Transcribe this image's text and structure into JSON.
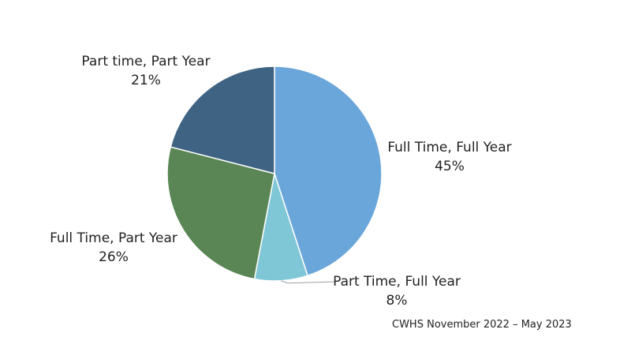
{
  "chart_data": {
    "type": "pie",
    "slices": [
      {
        "label": "Full Time, Full Year",
        "value": 45,
        "value_text": "45%",
        "color": "#6AA6D9"
      },
      {
        "label": "Part Time, Full Year",
        "value": 8,
        "value_text": "8%",
        "color": "#7FC7D6"
      },
      {
        "label": "Full Time, Part Year",
        "value": 26,
        "value_text": "26%",
        "color": "#5A8656"
      },
      {
        "label": "Part time, Part Year",
        "value": 21,
        "value_text": "21%",
        "color": "#3F6382"
      }
    ],
    "start": "12 o'clock",
    "direction": "clockwise",
    "legend": "none",
    "source": "CWHS November 2022 – May 2023"
  }
}
